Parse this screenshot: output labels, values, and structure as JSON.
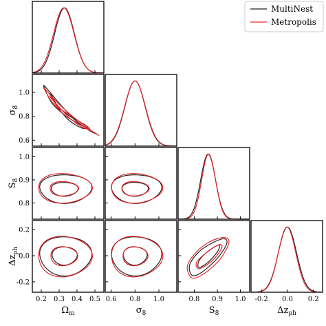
{
  "legend": {
    "location": "upper right",
    "entries": [
      {
        "label": "MultiNest",
        "color": "#222222"
      },
      {
        "label": "Metropolis",
        "color": "#e8262b"
      }
    ]
  },
  "parameters": [
    {
      "key": "Om",
      "label": "Ω",
      "sub": "m",
      "range": [
        0.15,
        0.55
      ],
      "ticks": [
        "0.2",
        "0.3",
        "0.4",
        "0.5"
      ]
    },
    {
      "key": "s8",
      "label": "σ",
      "sub": "8",
      "range": [
        0.55,
        1.15
      ],
      "ticks": [
        "0.6",
        "0.8",
        "1.0"
      ]
    },
    {
      "key": "S8",
      "label": "S",
      "sub": "8",
      "range": [
        0.73,
        1.04
      ],
      "ticks": [
        "0.8",
        "0.9",
        "1.0"
      ]
    },
    {
      "key": "dz",
      "label": "Δz",
      "sub": "ph",
      "range": [
        -0.28,
        0.27
      ],
      "ticks": [
        "-0.2",
        "0.0",
        "0.2"
      ]
    }
  ],
  "chart_data": {
    "type": "corner",
    "series_names": [
      "MultiNest",
      "Metropolis"
    ],
    "series_colors": {
      "MultiNest": "#222222",
      "Metropolis": "#e8262b"
    },
    "marginals": {
      "Om": {
        "MultiNest": {
          "mean": 0.33,
          "sd": 0.055
        },
        "Metropolis": {
          "mean": 0.326,
          "sd": 0.057
        }
      },
      "s8": {
        "MultiNest": {
          "mean": 0.8,
          "sd": 0.085
        },
        "Metropolis": {
          "mean": 0.8,
          "sd": 0.087
        }
      },
      "S8": {
        "MultiNest": {
          "mean": 0.86,
          "sd": 0.032
        },
        "Metropolis": {
          "mean": 0.862,
          "sd": 0.03
        }
      },
      "dz": {
        "MultiNest": {
          "mean": 0.0,
          "sd": 0.07
        },
        "Metropolis": {
          "mean": -0.003,
          "sd": 0.067
        }
      }
    },
    "contour_levels": [
      "68%",
      "95%"
    ],
    "contours": [
      {
        "x": "Om",
        "y": "s8",
        "MultiNest": {
          "inner": [
            [
              0.25,
              0.98
            ],
            [
              0.3,
              0.86
            ],
            [
              0.36,
              0.76
            ],
            [
              0.43,
              0.7
            ],
            [
              0.46,
              0.71
            ],
            [
              0.42,
              0.75
            ],
            [
              0.35,
              0.81
            ],
            [
              0.29,
              0.89
            ],
            [
              0.26,
              0.97
            ]
          ],
          "outer": [
            [
              0.22,
              1.05
            ],
            [
              0.3,
              0.91
            ],
            [
              0.38,
              0.78
            ],
            [
              0.47,
              0.68
            ],
            [
              0.51,
              0.65
            ],
            [
              0.5,
              0.66
            ],
            [
              0.43,
              0.72
            ],
            [
              0.34,
              0.8
            ],
            [
              0.26,
              0.91
            ],
            [
              0.22,
              1.03
            ]
          ]
        },
        "Metropolis": {
          "inner": [
            [
              0.25,
              0.96
            ],
            [
              0.31,
              0.86
            ],
            [
              0.37,
              0.77
            ],
            [
              0.44,
              0.7
            ],
            [
              0.47,
              0.7
            ],
            [
              0.43,
              0.74
            ],
            [
              0.36,
              0.81
            ],
            [
              0.29,
              0.88
            ],
            [
              0.26,
              0.96
            ]
          ],
          "outer": [
            [
              0.22,
              1.03
            ],
            [
              0.3,
              0.9
            ],
            [
              0.39,
              0.78
            ],
            [
              0.48,
              0.68
            ],
            [
              0.52,
              0.64
            ],
            [
              0.51,
              0.65
            ],
            [
              0.44,
              0.71
            ],
            [
              0.34,
              0.8
            ],
            [
              0.26,
              0.92
            ],
            [
              0.22,
              1.02
            ]
          ]
        }
      },
      {
        "x": "Om",
        "y": "S8",
        "MultiNest": {
          "inner": {
            "center": [
              0.33,
              0.86
            ],
            "rx": 0.075,
            "ry": 0.03
          },
          "outer": {
            "center": [
              0.335,
              0.862
            ],
            "rx": 0.145,
            "ry": 0.062
          }
        },
        "Metropolis": {
          "inner": {
            "center": [
              0.326,
              0.862
            ],
            "rx": 0.08,
            "ry": 0.031
          },
          "outer": {
            "center": [
              0.33,
              0.864
            ],
            "rx": 0.15,
            "ry": 0.064
          }
        }
      },
      {
        "x": "s8",
        "y": "S8",
        "MultiNest": {
          "inner": {
            "center": [
              0.8,
              0.86
            ],
            "rx": 0.11,
            "ry": 0.03
          },
          "outer": {
            "center": [
              0.81,
              0.862
            ],
            "rx": 0.21,
            "ry": 0.062
          }
        },
        "Metropolis": {
          "inner": {
            "center": [
              0.8,
              0.862
            ],
            "rx": 0.115,
            "ry": 0.031
          },
          "outer": {
            "center": [
              0.81,
              0.864
            ],
            "rx": 0.215,
            "ry": 0.064
          }
        }
      },
      {
        "x": "Om",
        "y": "dz",
        "MultiNest": {
          "inner": {
            "center": [
              0.33,
              0.0
            ],
            "rx": 0.07,
            "ry": 0.07
          },
          "outer": {
            "center": [
              0.335,
              0.0
            ],
            "rx": 0.145,
            "ry": 0.15
          }
        },
        "Metropolis": {
          "inner": {
            "center": [
              0.326,
              -0.003
            ],
            "rx": 0.075,
            "ry": 0.073
          },
          "outer": {
            "center": [
              0.33,
              -0.005
            ],
            "rx": 0.15,
            "ry": 0.155
          }
        }
      },
      {
        "x": "s8",
        "y": "dz",
        "MultiNest": {
          "inner": {
            "center": [
              0.8,
              0.0
            ],
            "rx": 0.1,
            "ry": 0.07
          },
          "outer": {
            "center": [
              0.81,
              0.0
            ],
            "rx": 0.21,
            "ry": 0.15
          }
        },
        "Metropolis": {
          "inner": {
            "center": [
              0.8,
              -0.003
            ],
            "rx": 0.105,
            "ry": 0.073
          },
          "outer": {
            "center": [
              0.81,
              -0.005
            ],
            "rx": 0.215,
            "ry": 0.155
          }
        }
      },
      {
        "x": "S8",
        "y": "dz",
        "MultiNest": {
          "inner": [
            [
              0.82,
              -0.09
            ],
            [
              0.86,
              -0.05
            ],
            [
              0.9,
              0.03
            ],
            [
              0.91,
              0.08
            ],
            [
              0.89,
              0.07
            ],
            [
              0.85,
              0.02
            ],
            [
              0.82,
              -0.04
            ]
          ],
          "outer": [
            [
              0.79,
              -0.15
            ],
            [
              0.83,
              -0.13
            ],
            [
              0.9,
              -0.02
            ],
            [
              0.94,
              0.09
            ],
            [
              0.93,
              0.13
            ],
            [
              0.88,
              0.1
            ],
            [
              0.82,
              0.03
            ],
            [
              0.78,
              -0.07
            ]
          ]
        },
        "Metropolis": {
          "inner": [
            [
              0.82,
              -0.1
            ],
            [
              0.87,
              -0.05
            ],
            [
              0.91,
              0.03
            ],
            [
              0.92,
              0.08
            ],
            [
              0.9,
              0.08
            ],
            [
              0.85,
              0.02
            ],
            [
              0.81,
              -0.05
            ]
          ],
          "outer": [
            [
              0.79,
              -0.17
            ],
            [
              0.84,
              -0.14
            ],
            [
              0.91,
              -0.03
            ],
            [
              0.95,
              0.1
            ],
            [
              0.93,
              0.14
            ],
            [
              0.87,
              0.11
            ],
            [
              0.81,
              0.03
            ],
            [
              0.77,
              -0.08
            ]
          ]
        }
      }
    ]
  }
}
